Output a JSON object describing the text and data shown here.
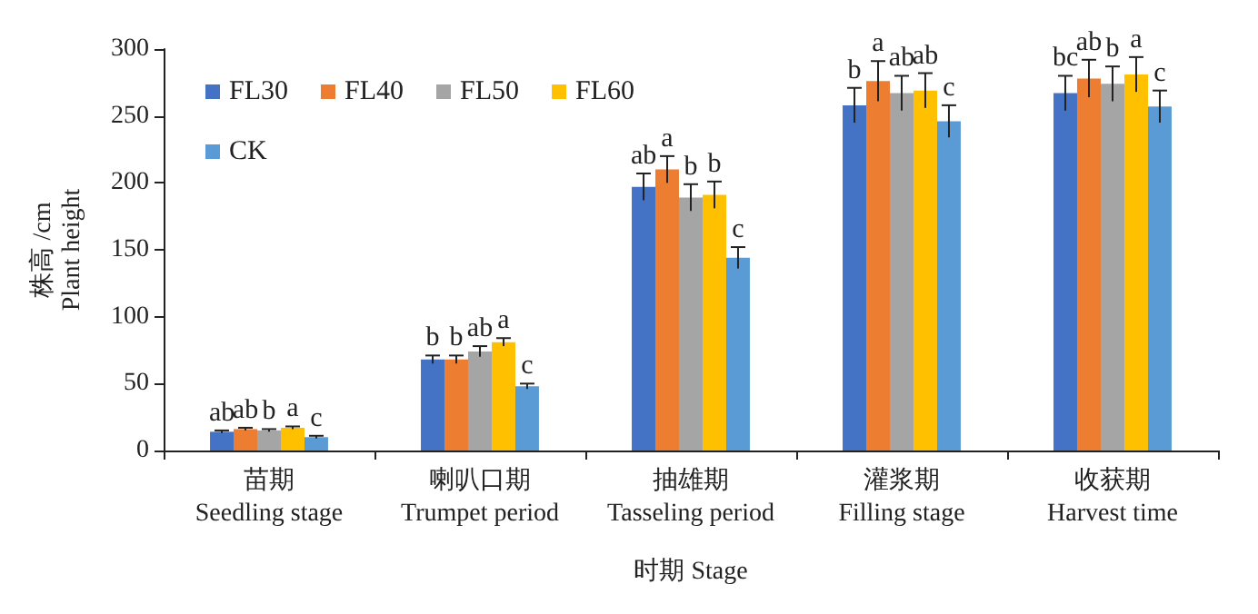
{
  "chart_data": {
    "type": "bar",
    "xlabel": "时期 Stage",
    "ylabel": "株高 /cm\nPlant height",
    "categories": [
      "苗期\nSeedling stage",
      "喇叭口期\nTrumpet period",
      "抽雄期\nTasseling period",
      "灌浆期\nFilling stage",
      "收获期\nHarvest time"
    ],
    "series": [
      {
        "name": "FL30",
        "color": "#4472c4",
        "values": [
          14,
          68,
          197,
          258,
          267
        ],
        "errors": [
          1,
          3,
          10,
          13,
          13
        ],
        "value_labels": [
          "ab",
          "b",
          "ab",
          "b",
          "bc"
        ]
      },
      {
        "name": "FL40",
        "color": "#ed7d31",
        "values": [
          16,
          68,
          210,
          276,
          278
        ],
        "errors": [
          1,
          3,
          10,
          15,
          14
        ],
        "value_labels": [
          "ab",
          "b",
          "a",
          "a",
          "ab"
        ]
      },
      {
        "name": "FL50",
        "color": "#a5a5a5",
        "values": [
          15,
          74,
          189,
          267,
          274
        ],
        "errors": [
          1,
          4,
          10,
          13,
          13
        ],
        "value_labels": [
          "b",
          "ab",
          "b",
          "ab",
          "b"
        ]
      },
      {
        "name": "FL60",
        "color": "#ffc000",
        "values": [
          17,
          81,
          191,
          269,
          281
        ],
        "errors": [
          1,
          3,
          10,
          13,
          13
        ],
        "value_labels": [
          "a",
          "a",
          "b",
          "ab",
          "a"
        ]
      },
      {
        "name": "CK",
        "color": "#5b9bd5",
        "values": [
          10,
          48,
          144,
          246,
          257
        ],
        "errors": [
          1,
          2,
          8,
          12,
          12
        ],
        "value_labels": [
          "c",
          "c",
          "c",
          "c",
          "c"
        ]
      }
    ],
    "ylim": [
      0,
      300
    ],
    "yticks": [
      0,
      50,
      100,
      150,
      200,
      250,
      300
    ],
    "grid": false,
    "legend": "top left"
  }
}
